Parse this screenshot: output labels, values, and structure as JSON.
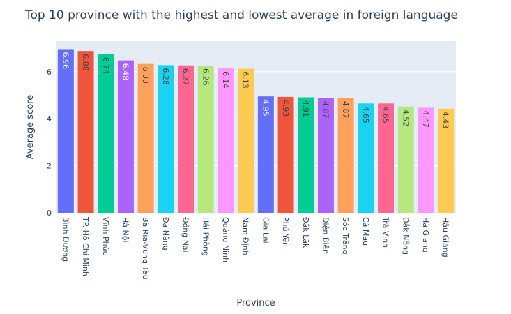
{
  "chart_data": {
    "type": "bar",
    "title": "Top 10 province with the highest and lowest average in foreign language",
    "xlabel": "Province",
    "ylabel": "Average score",
    "ylim": [
      0,
      7.3
    ],
    "yticks": [
      0,
      2,
      4,
      6
    ],
    "grid": true,
    "categories": [
      "Bình Dương",
      "TP. Hồ Chí Minh",
      "Vĩnh Phúc",
      "Hà Nội",
      "Bà Rịa-Vũng Tàu",
      "Đà Nẵng",
      "Đồng Nai",
      "Hải Phòng",
      "Quảng Ninh",
      "Nam Định",
      "Gia Lai",
      "Phú Yên",
      "Đắk Lắk",
      "Điện Biên",
      "Sóc Trăng",
      "Cà Mau",
      "Trà Vinh",
      "Đắk Nông",
      "Hà Giang",
      "Hậu Giang"
    ],
    "values": [
      6.96,
      6.88,
      6.74,
      6.48,
      6.33,
      6.28,
      6.27,
      6.26,
      6.14,
      6.13,
      4.95,
      4.93,
      4.91,
      4.87,
      4.87,
      4.65,
      4.65,
      4.52,
      4.47,
      4.43
    ],
    "value_labels": [
      "6.96",
      "6.88",
      "6.74",
      "6.48",
      "6.33",
      "6.28",
      "6.27",
      "6.26",
      "6.14",
      "6.13",
      "4.95",
      "4.93",
      "4.91",
      "4.87",
      "4.87",
      "4.65",
      "4.65",
      "4.52",
      "4.47",
      "4.43"
    ],
    "colors": [
      "#636efa",
      "#EF553B",
      "#00cc96",
      "#ab63fa",
      "#FFA15A",
      "#19d3f3",
      "#FF6692",
      "#B6E880",
      "#FF97FF",
      "#FECB52",
      "#636efa",
      "#EF553B",
      "#00cc96",
      "#ab63fa",
      "#FFA15A",
      "#19d3f3",
      "#FF6692",
      "#B6E880",
      "#FF97FF",
      "#FECB52"
    ],
    "label_colors": [
      "#ffffff",
      "#444444",
      "#444444",
      "#ffffff",
      "#444444",
      "#444444",
      "#444444",
      "#444444",
      "#444444",
      "#444444",
      "#ffffff",
      "#444444",
      "#444444",
      "#444444",
      "#444444",
      "#444444",
      "#444444",
      "#444444",
      "#444444",
      "#444444"
    ],
    "plot_background": "#E5ECF6",
    "gridline_color": "#ffffff"
  }
}
